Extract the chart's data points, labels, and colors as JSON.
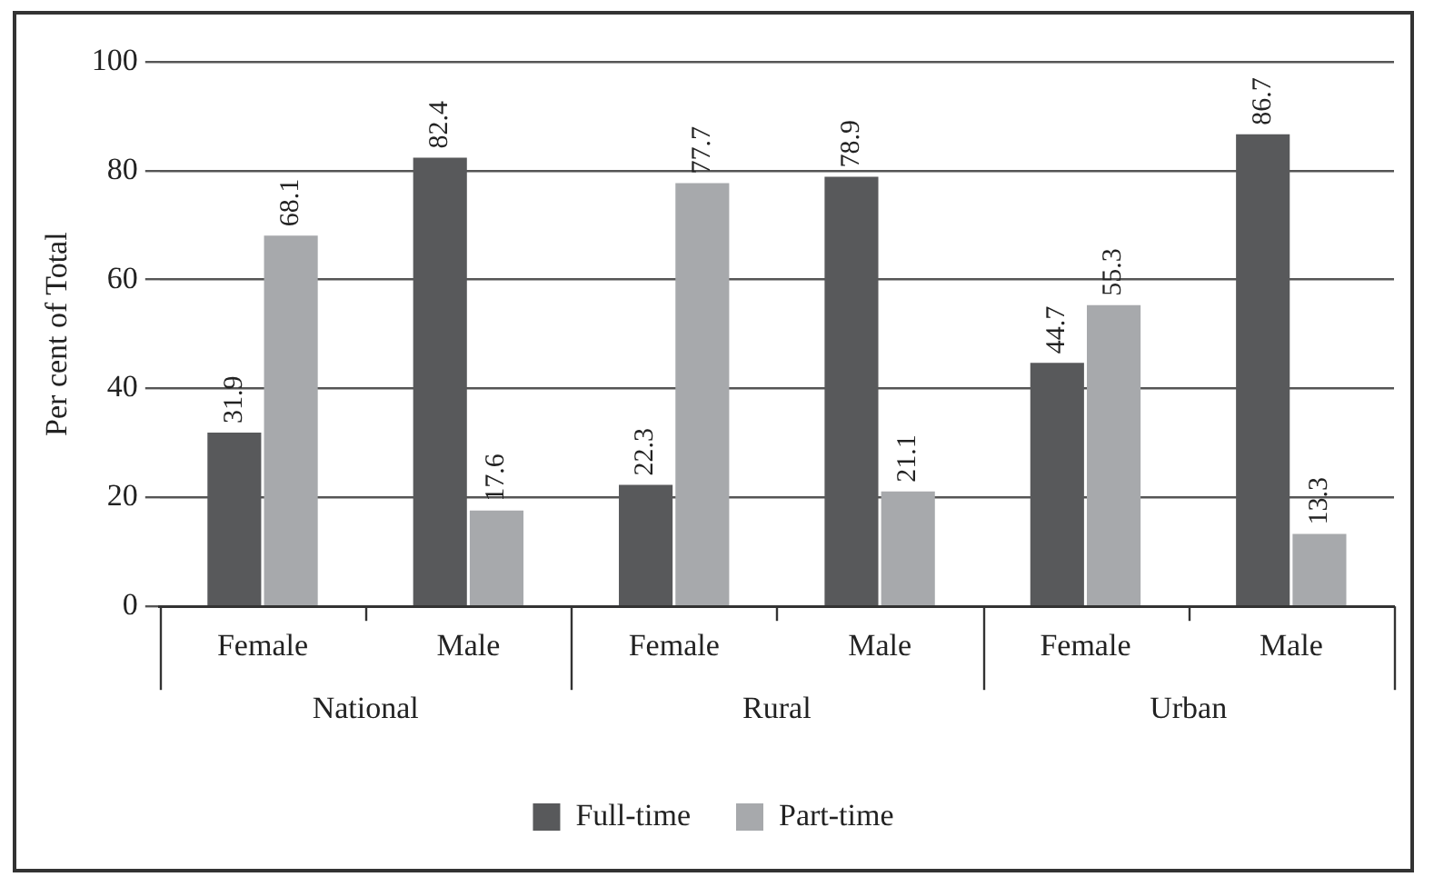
{
  "chart_data": {
    "type": "bar",
    "ylabel": "Per cent of Total",
    "categories": [
      "Female",
      "Male",
      "Female",
      "Male",
      "Female",
      "Male"
    ],
    "series": [
      {
        "name": "Full-time",
        "color": "#58595b",
        "values": [
          31.9,
          82.4,
          22.3,
          78.9,
          44.7,
          86.7
        ]
      },
      {
        "name": "Part-time",
        "color": "#a7a9ac",
        "values": [
          68.1,
          17.6,
          77.7,
          21.1,
          55.3,
          13.3
        ]
      }
    ],
    "annotations": [
      "National",
      "Rural",
      "Urban"
    ],
    "ylim": [
      0,
      100
    ],
    "yticks": [
      0,
      20,
      40,
      60,
      80,
      100
    ],
    "grid": "y",
    "legend": "bottom",
    "data_labels": true
  }
}
